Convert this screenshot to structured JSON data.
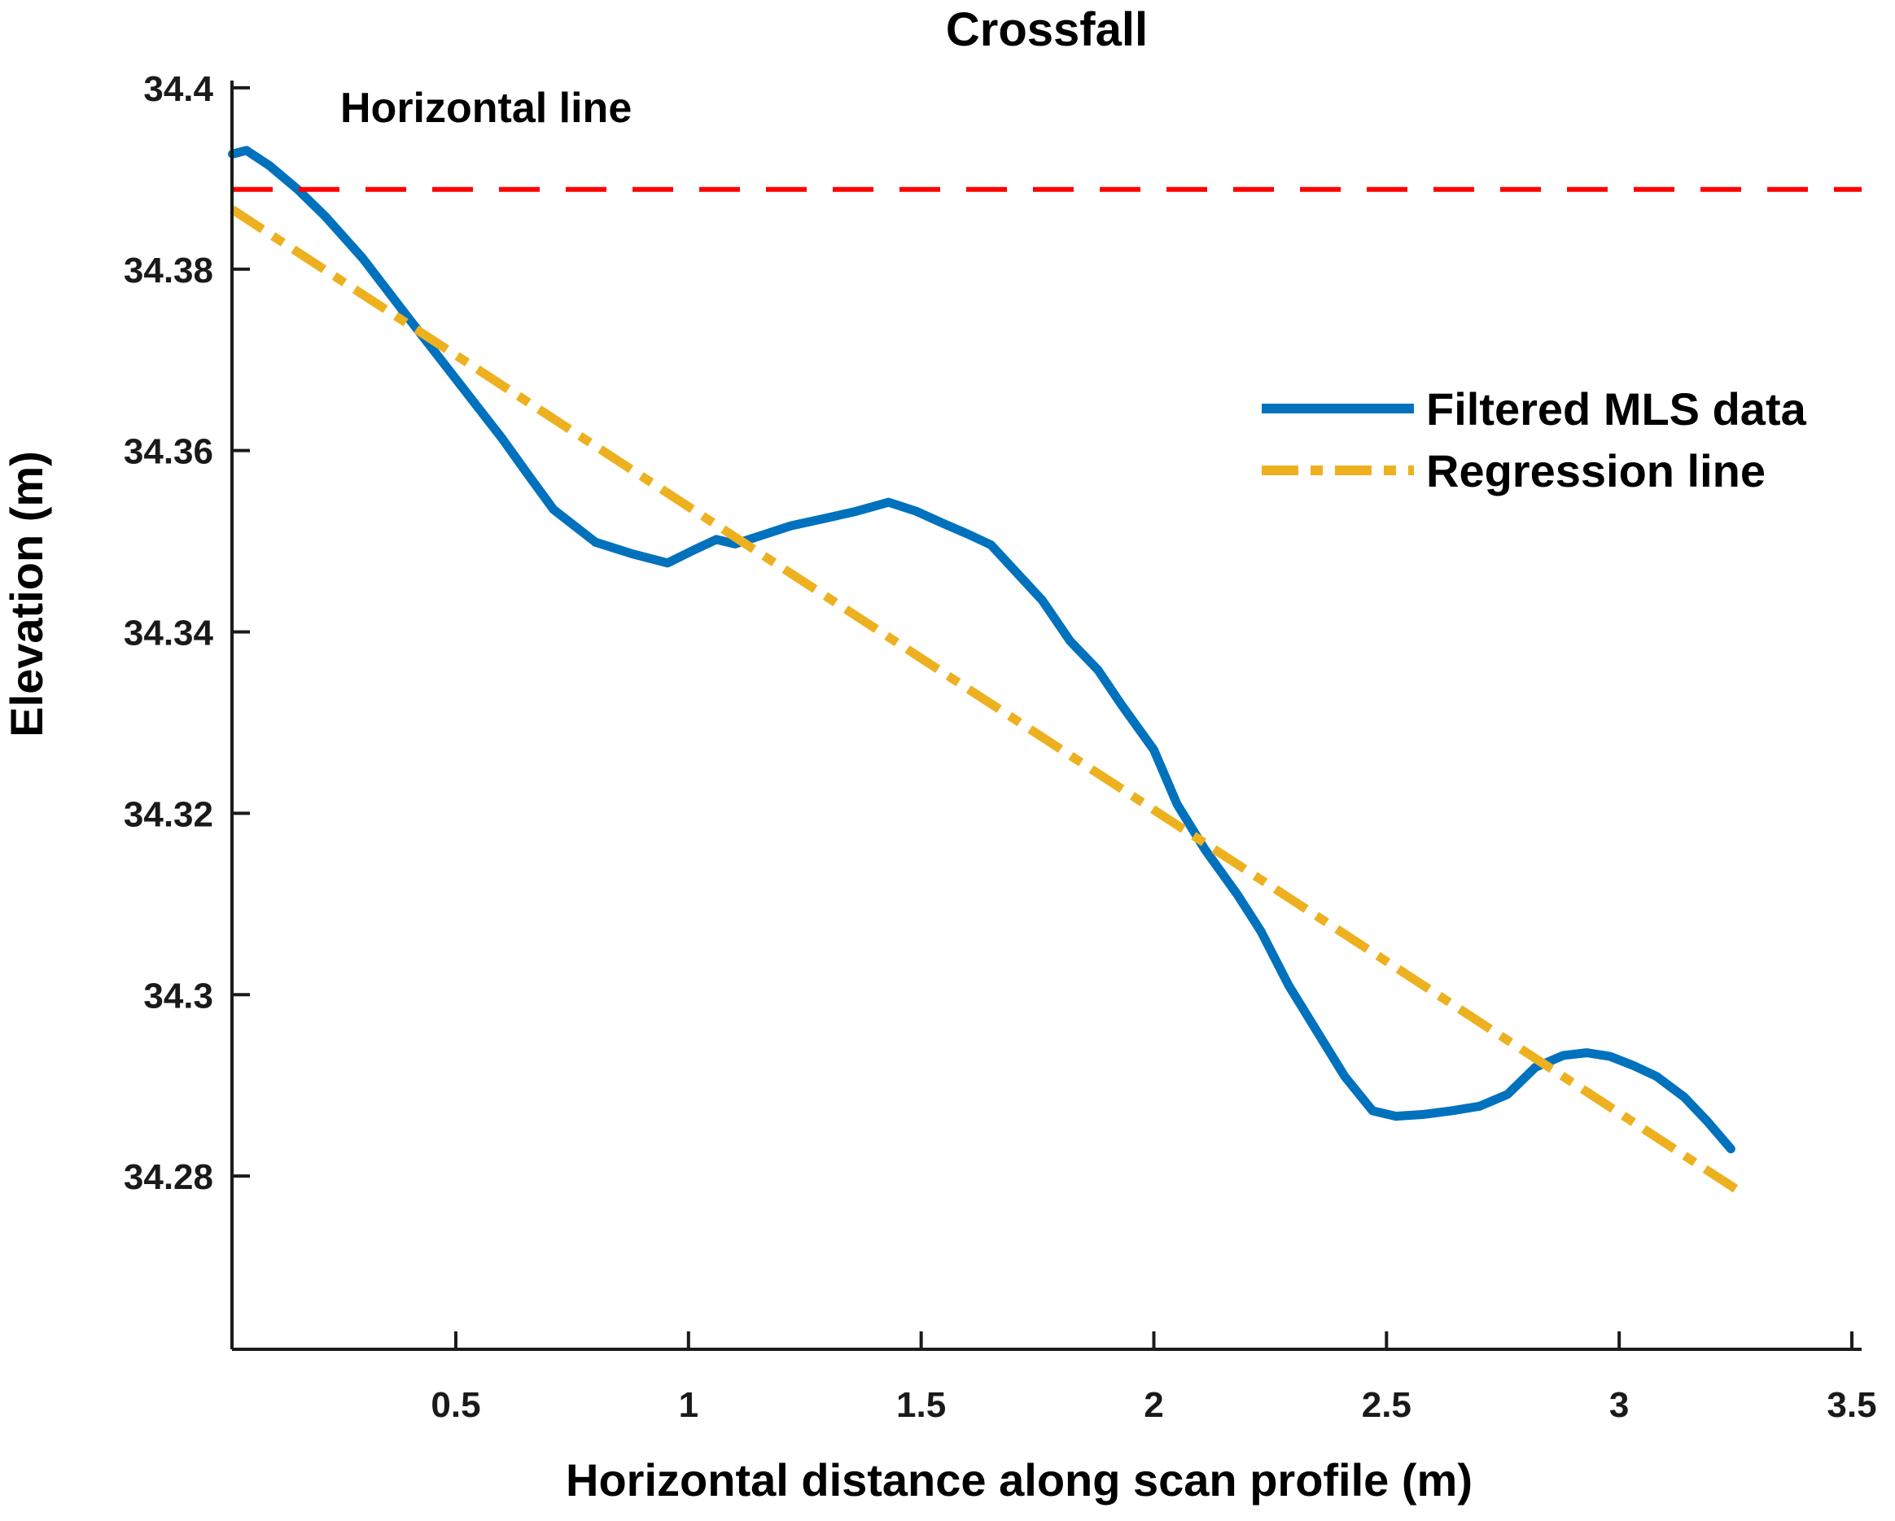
{
  "title": "Crossfall",
  "annotation": "Horizontal line",
  "axes": {
    "xlabel": "Horizontal distance along scan profile (m)",
    "ylabel": "Elevation (m)",
    "x_tick_values": [
      0.5,
      1,
      1.5,
      2,
      2.5,
      3,
      3.5
    ],
    "x_tick_labels": [
      "0.5",
      "1",
      "1.5",
      "2",
      "2.5",
      "3",
      "3.5"
    ],
    "y_tick_values": [
      34.28,
      34.3,
      34.32,
      34.34,
      34.36,
      34.38,
      34.4
    ],
    "y_tick_labels": [
      "34.28",
      "34.3",
      "34.32",
      "34.34",
      "34.36",
      "34.38",
      "34.4"
    ],
    "xlim": [
      0.019,
      3.521
    ],
    "ylim": [
      34.2609,
      34.4008
    ]
  },
  "legend": {
    "entries": [
      {
        "label": "Filtered MLS data",
        "color": "#0072BD",
        "style": "solid"
      },
      {
        "label": "Regression line",
        "color": "#EDB120",
        "style": "dash-dot"
      }
    ]
  },
  "colors": {
    "mls_blue": "#0072BD",
    "regression_gold": "#EDB120",
    "horizontal_red": "#FF0000",
    "axis": "#1a1a1a",
    "text": "#000000"
  },
  "chart_data": {
    "type": "line",
    "title": "Crossfall",
    "xlabel": "Horizontal distance along scan profile (m)",
    "ylabel": "Elevation (m)",
    "xlim": [
      0.019,
      3.521
    ],
    "ylim": [
      34.2609,
      34.4008
    ],
    "grid": false,
    "legend_position": "inside upper right, no box",
    "series": [
      {
        "name": "Filtered MLS data",
        "color": "#0072BD",
        "style": "solid",
        "x": [
          0.02,
          0.05,
          0.1,
          0.16,
          0.22,
          0.3,
          0.4,
          0.5,
          0.6,
          0.66,
          0.71,
          0.8,
          0.88,
          0.955,
          1.01,
          1.06,
          1.1,
          1.16,
          1.22,
          1.3,
          1.36,
          1.43,
          1.49,
          1.55,
          1.6,
          1.65,
          1.76,
          1.82,
          1.88,
          1.93,
          2.0,
          2.05,
          2.11,
          2.18,
          2.23,
          2.29,
          2.35,
          2.41,
          2.47,
          2.52,
          2.58,
          2.64,
          2.7,
          2.76,
          2.82,
          2.88,
          2.93,
          2.98,
          3.03,
          3.08,
          3.14,
          3.19,
          3.24
        ],
        "y": [
          34.3927,
          34.3931,
          34.3914,
          34.3888,
          34.3858,
          34.3812,
          34.3745,
          34.3679,
          34.3613,
          34.357,
          34.3535,
          34.3499,
          34.3486,
          34.3476,
          34.349,
          34.3502,
          34.3497,
          34.3507,
          34.3517,
          34.3526,
          34.3533,
          34.3543,
          34.3533,
          34.3519,
          34.3508,
          34.3496,
          34.3435,
          34.339,
          34.3358,
          34.332,
          34.327,
          34.321,
          34.316,
          34.311,
          34.307,
          34.301,
          34.296,
          34.291,
          34.2872,
          34.2866,
          34.2868,
          34.2872,
          34.2877,
          34.289,
          34.292,
          34.2933,
          34.2936,
          34.2932,
          34.2922,
          34.291,
          34.2887,
          34.286,
          34.283
        ]
      },
      {
        "name": "Regression line",
        "color": "#EDB120",
        "style": "dash-dot",
        "x": [
          0.019,
          3.25
        ],
        "y": [
          34.3866,
          34.2786
        ]
      },
      {
        "name": "Horizontal line",
        "color": "#FF0000",
        "style": "dashed",
        "x": [
          0.019,
          3.521
        ],
        "y": [
          34.3888,
          34.3888
        ]
      }
    ]
  }
}
